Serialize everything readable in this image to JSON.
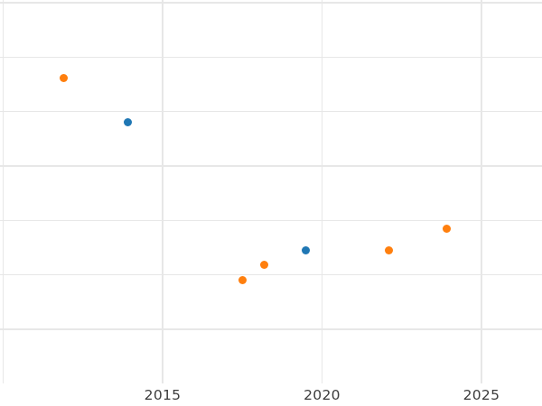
{
  "colors": {
    "background": "#ffffff",
    "gridline": "#e7e7e7",
    "tick_label": "#3c3c3c",
    "series_blue": "#1f77b4",
    "series_orange": "#ff7f0e"
  },
  "chart_data": {
    "type": "scatter",
    "title": "",
    "xlabel": "",
    "ylabel": "",
    "grid": true,
    "legend": "none",
    "y_axis_note": "y-axis tick labels are cropped out of the visible image; y values are expressed in gridline units above the plot bottom (one unit = one gridline spacing)",
    "xlim": [
      2009.9,
      2026.9
    ],
    "ylim": [
      0,
      7.05
    ],
    "x_ticks": [
      {
        "year": 2015,
        "label": "2015"
      },
      {
        "year": 2020,
        "label": "2020"
      },
      {
        "year": 2025,
        "label": "2025"
      }
    ],
    "x_gridline_years": [
      2010,
      2015,
      2020,
      2025
    ],
    "y_gridline_values": [
      1,
      2,
      3,
      4,
      5,
      6,
      7
    ],
    "series": [
      {
        "name": "blue-series",
        "color_key": "series_blue",
        "marker": "circle",
        "points": [
          {
            "x": 2013.9,
            "y": 4.81
          },
          {
            "x": 2019.5,
            "y": 2.45
          }
        ]
      },
      {
        "name": "orange-series",
        "color_key": "series_orange",
        "marker": "circle",
        "points": [
          {
            "x": 2011.9,
            "y": 5.62
          },
          {
            "x": 2017.5,
            "y": 1.9
          },
          {
            "x": 2018.2,
            "y": 2.19
          },
          {
            "x": 2022.1,
            "y": 2.45
          },
          {
            "x": 2023.9,
            "y": 2.84
          }
        ]
      }
    ]
  }
}
